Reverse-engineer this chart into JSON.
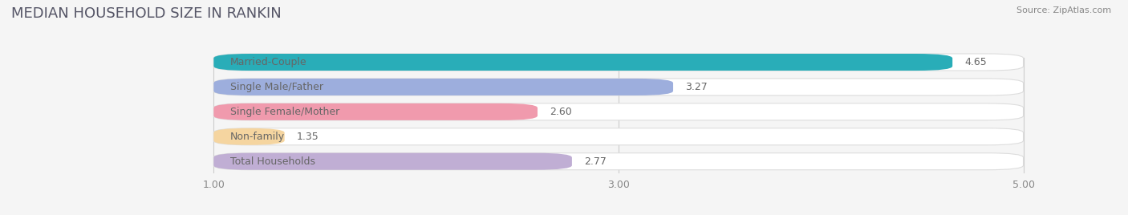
{
  "title": "MEDIAN HOUSEHOLD SIZE IN RANKIN",
  "source": "Source: ZipAtlas.com",
  "categories": [
    "Married-Couple",
    "Single Male/Father",
    "Single Female/Mother",
    "Non-family",
    "Total Households"
  ],
  "values": [
    4.65,
    3.27,
    2.6,
    1.35,
    2.77
  ],
  "bar_colors": [
    "#29adb8",
    "#9daedd",
    "#f09aad",
    "#f5d5a0",
    "#c0aed4"
  ],
  "xlim_min": 0.0,
  "xlim_max": 5.35,
  "data_min": 1.0,
  "data_max": 5.0,
  "xticks": [
    1.0,
    3.0,
    5.0
  ],
  "xtick_labels": [
    "1.00",
    "3.00",
    "5.00"
  ],
  "background_color": "#f5f5f5",
  "bar_bg_color": "#ffffff",
  "title_fontsize": 13,
  "label_fontsize": 9,
  "value_fontsize": 9,
  "bar_height": 0.68,
  "title_color": "#555566",
  "source_color": "#888888",
  "label_color": "#666666",
  "value_color": "#666666"
}
